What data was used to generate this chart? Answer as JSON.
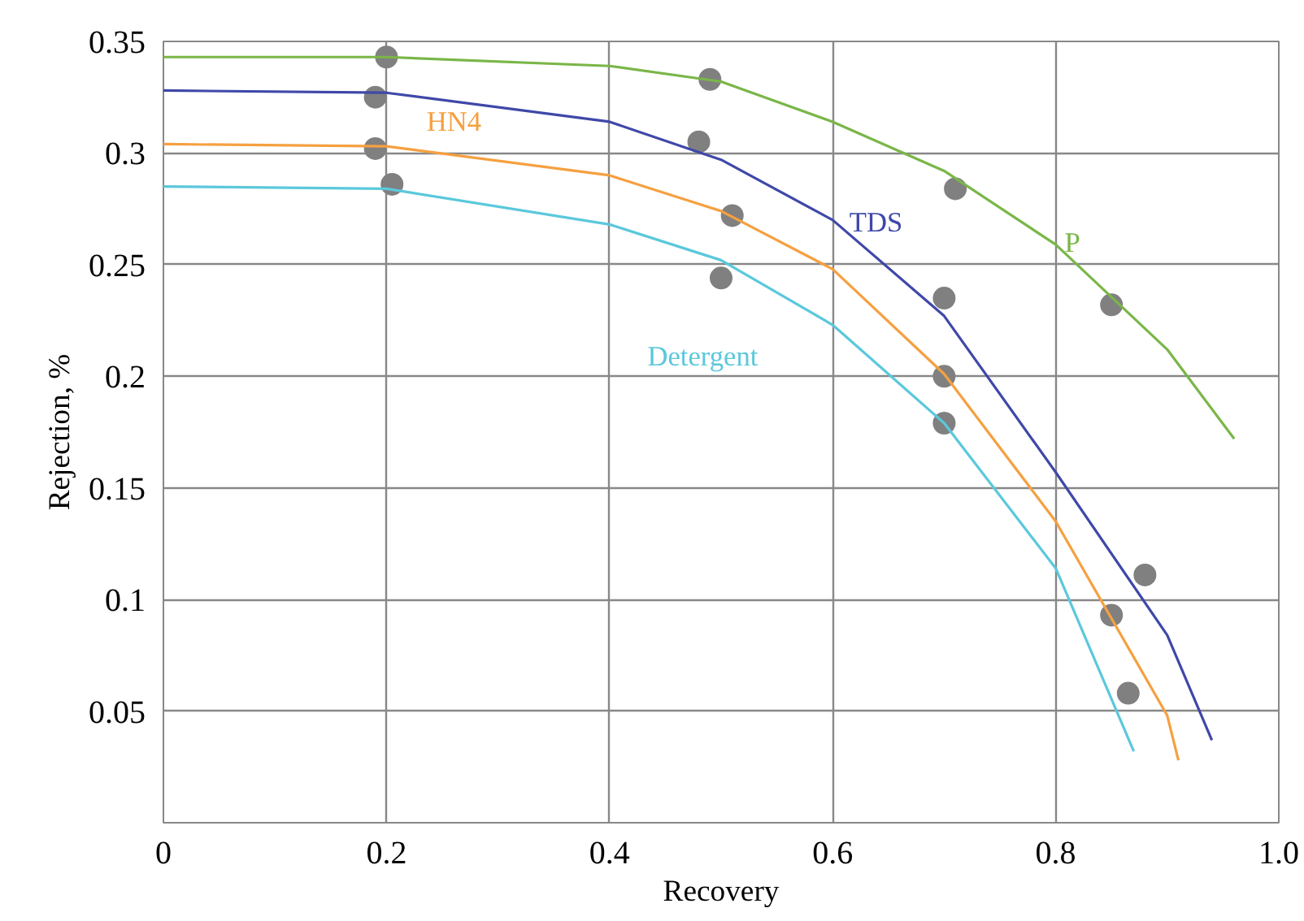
{
  "chart_data": {
    "type": "line",
    "xlabel": "Recovery",
    "ylabel": "Rejection, %",
    "xlim": [
      0,
      1.0
    ],
    "ylim": [
      0,
      0.35
    ],
    "xticks": [
      0,
      0.2,
      0.4,
      0.6,
      0.8,
      {
        "value": 1.0,
        "label": "1.0"
      }
    ],
    "yticks": [
      0.05,
      0.1,
      0.15,
      0.2,
      0.25,
      0.3,
      0.35
    ],
    "grid": true,
    "marker": "none",
    "line_style": "solid",
    "series": [
      {
        "name": "P",
        "color": "#7ab648",
        "x": [
          0,
          0.2,
          0.4,
          0.5,
          0.6,
          0.7,
          0.8,
          0.9,
          0.96
        ],
        "values": [
          0.343,
          0.343,
          0.339,
          0.332,
          0.314,
          0.292,
          0.259,
          0.212,
          0.172
        ]
      },
      {
        "name": "TDS",
        "color": "#3f48a8",
        "x": [
          0,
          0.2,
          0.4,
          0.5,
          0.6,
          0.7,
          0.8,
          0.9,
          0.94
        ],
        "values": [
          0.328,
          0.327,
          0.314,
          0.297,
          0.27,
          0.227,
          0.157,
          0.084,
          0.037
        ]
      },
      {
        "name": "HN4",
        "color": "#f5a040",
        "x": [
          0,
          0.2,
          0.4,
          0.5,
          0.6,
          0.7,
          0.8,
          0.9,
          0.91
        ],
        "values": [
          0.304,
          0.303,
          0.29,
          0.274,
          0.248,
          0.201,
          0.135,
          0.048,
          0.028
        ]
      },
      {
        "name": "Detergent",
        "color": "#5bc8dc",
        "x": [
          0,
          0.2,
          0.4,
          0.5,
          0.6,
          0.7,
          0.8,
          0.87
        ],
        "values": [
          0.285,
          0.284,
          0.268,
          0.252,
          0.223,
          0.179,
          0.114,
          0.032
        ]
      },
      {
        "type": "scatter",
        "marker": "circle",
        "color": "#808080",
        "x": [
          0.2,
          0.19,
          0.19,
          0.205,
          0.49,
          0.48,
          0.51,
          0.5,
          0.71,
          0.7,
          0.7,
          0.7,
          0.85,
          0.88,
          0.85,
          0.865
        ],
        "values": [
          0.343,
          0.325,
          0.302,
          0.286,
          0.333,
          0.305,
          0.272,
          0.244,
          0.284,
          0.235,
          0.2,
          0.179,
          0.232,
          0.111,
          0.093,
          0.058
        ]
      }
    ]
  }
}
